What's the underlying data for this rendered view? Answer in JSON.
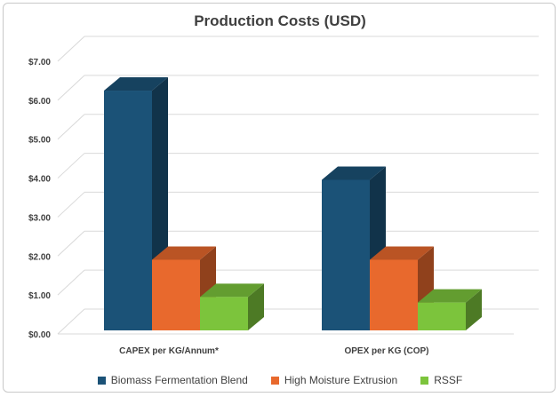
{
  "chart_data": {
    "type": "bar",
    "title": "Production Costs (USD)",
    "categories": [
      "CAPEX per KG/Annum*",
      "OPEX per KG (COP)"
    ],
    "series": [
      {
        "name": "Biomass Fermentation Blend",
        "values": [
          6.45,
          4.05
        ],
        "color": "#1b5277"
      },
      {
        "name": "High Moisture Extrusion",
        "values": [
          1.9,
          1.9
        ],
        "color": "#e8692d"
      },
      {
        "name": "RSSF",
        "values": [
          0.9,
          0.75
        ],
        "color": "#7cc43c"
      }
    ],
    "ylim": [
      0,
      7
    ],
    "yticks": [
      "$0.00",
      "$1.00",
      "$2.00",
      "$3.00",
      "$4.00",
      "$5.00",
      "$6.00",
      "$7.00"
    ],
    "grid": true,
    "legend_position": "bottom",
    "style": "3d-clustered-column"
  }
}
